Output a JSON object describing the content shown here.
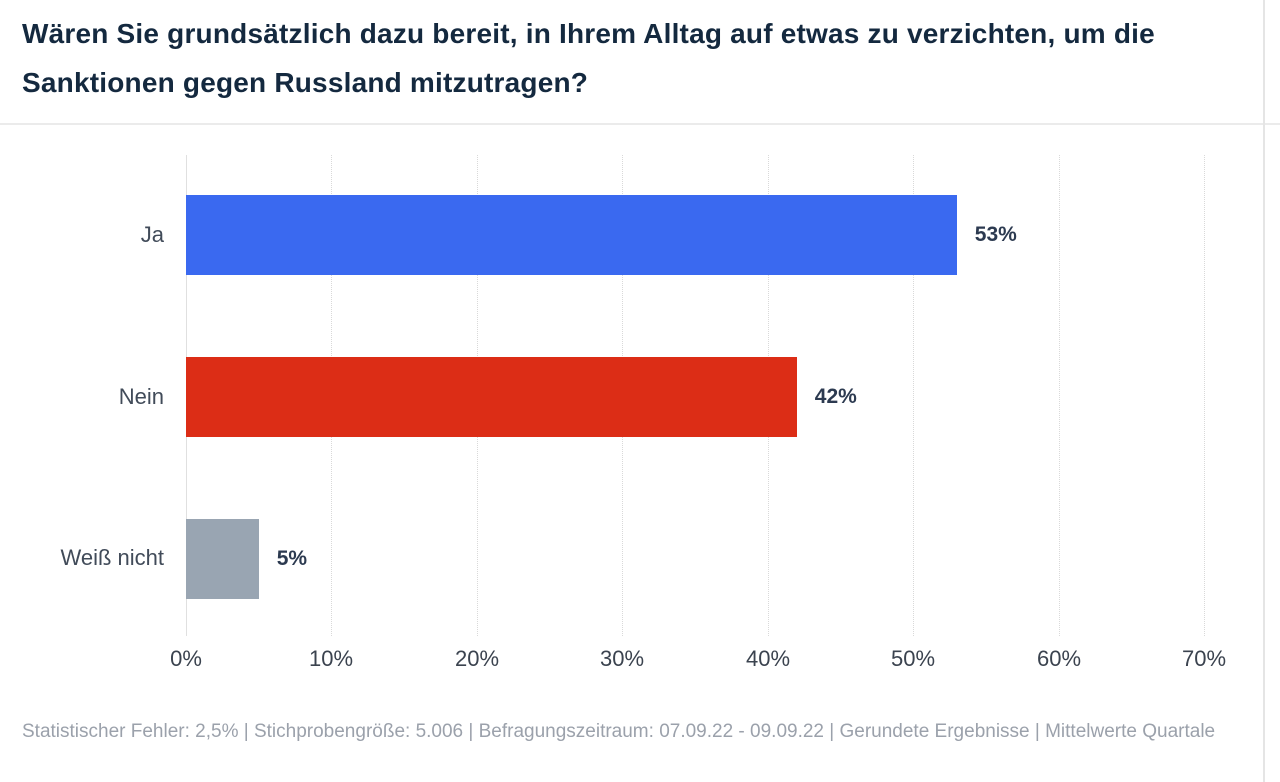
{
  "header": {
    "title": "Wären Sie grundsätzlich dazu bereit, in Ihrem Alltag auf etwas zu verzichten, um die Sanktionen gegen Russland mitzutragen?"
  },
  "chart_data": {
    "type": "bar",
    "orientation": "horizontal",
    "categories": [
      "Ja",
      "Nein",
      "Weiß nicht"
    ],
    "values": [
      53,
      42,
      5
    ],
    "value_labels": [
      "53%",
      "42%",
      "5%"
    ],
    "bar_colors": [
      "#3A69F0",
      "#DC2D16",
      "#99A5B2"
    ],
    "xlim": [
      0,
      70
    ],
    "x_ticks": [
      "0%",
      "10%",
      "20%",
      "30%",
      "40%",
      "50%",
      "60%",
      "70%"
    ],
    "grid": "vertical-dotted",
    "legend": "none",
    "title": "",
    "xlabel": "",
    "ylabel": ""
  },
  "footer": {
    "disclaimer": "Statistischer Fehler: 2,5% | Stichprobengröße: 5.006 | Befragungszeitraum: 07.09.22 - 09.09.22 | Gerundete Ergebnisse | Mittelwerte Quartale"
  },
  "colors": {
    "title_text": "#14293F",
    "category_text": "#414B59",
    "value_text": "#2C3A50",
    "tick_text": "#3B434F",
    "footer_text": "#9BA1AB",
    "divider": "#EBEBEB",
    "gridline": "#D9D9D9"
  }
}
